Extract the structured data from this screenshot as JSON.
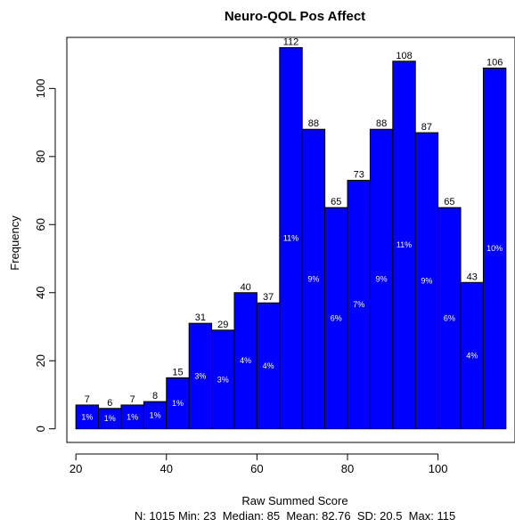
{
  "chart_data": {
    "type": "bar",
    "title": "Neuro-QOL Pos Affect",
    "xlabel": "Raw Summed Score",
    "ylabel": "Frequency",
    "stats_line": "N: 1015 Min: 23  Median: 85  Mean: 82.76  SD: 20.5  Max: 115",
    "bin_edges": [
      20,
      25,
      30,
      35,
      40,
      45,
      50,
      55,
      60,
      65,
      70,
      75,
      80,
      85,
      90,
      95,
      100,
      105,
      110,
      115
    ],
    "values": [
      7,
      6,
      7,
      8,
      15,
      31,
      29,
      40,
      37,
      112,
      88,
      65,
      73,
      88,
      108,
      87,
      65,
      43,
      106
    ],
    "value_labels": [
      "7",
      "6",
      "7",
      "8",
      "15",
      "31",
      "29",
      "40",
      "37",
      "112",
      "88",
      "65",
      "73",
      "88",
      "108",
      "87",
      "65",
      "43",
      "106"
    ],
    "percent_labels": [
      "1%",
      "1%",
      "1%",
      "1%",
      "1%",
      "3%",
      "3%",
      "4%",
      "4%",
      "11%",
      "9%",
      "6%",
      "7%",
      "9%",
      "11%",
      "9%",
      "6%",
      "4%",
      "10%"
    ],
    "xlim": [
      18,
      117
    ],
    "ylim": [
      -4,
      115
    ],
    "x_ticks": [
      20,
      40,
      60,
      80,
      100
    ],
    "x_tick_labels": [
      "20",
      "40",
      "60",
      "80",
      "100"
    ],
    "y_ticks": [
      0,
      20,
      40,
      60,
      80,
      100
    ],
    "y_tick_labels": [
      "0",
      "20",
      "40",
      "60",
      "80",
      "100"
    ],
    "bar_color": "#0000ff",
    "bar_edge_color": "#000000",
    "grid": false,
    "legend": "none"
  }
}
